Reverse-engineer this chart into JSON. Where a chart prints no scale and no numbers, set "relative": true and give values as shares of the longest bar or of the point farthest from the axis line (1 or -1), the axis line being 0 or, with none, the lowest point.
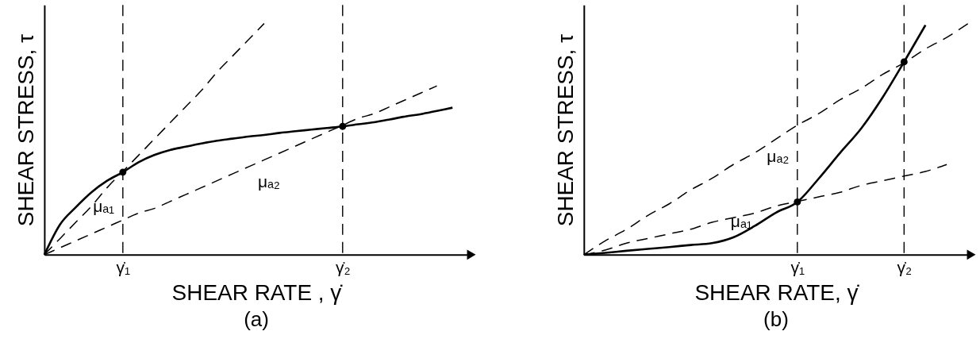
{
  "chart_data": [
    {
      "type": "line",
      "title": "(a)",
      "xlabel": "SHEAR RATE , γ̇",
      "ylabel": "SHEAR STRESS, τ",
      "relative": true,
      "categories": [
        null,
        null,
        null,
        null,
        null,
        "γ̇₁",
        null,
        null,
        null,
        null,
        null,
        null,
        null,
        null,
        null,
        null,
        null,
        null,
        null,
        "γ̇₂",
        null,
        null,
        null,
        null,
        null,
        null,
        null,
        null
      ],
      "series": [
        {
          "line_style": "solid",
          "color": "#000000",
          "values": [
            0,
            0.131,
            0.205,
            0.27,
            0.32,
            0.357,
            0.4,
            0.431,
            0.453,
            0.467,
            0.481,
            0.493,
            0.502,
            0.511,
            0.518,
            0.527,
            0.534,
            0.541,
            0.548,
            0.555,
            0.564,
            0.573,
            0.585,
            0.598,
            0.608,
            0.622,
            0.636,
            null
          ]
        },
        {
          "line_style": "dashed",
          "color": "#000000",
          "values": [
            0,
            0.07,
            0.14,
            0.21,
            0.29,
            0.36,
            0.43,
            0.5,
            0.57,
            0.64,
            0.71,
            0.79,
            0.86,
            0.93,
            1,
            null,
            null,
            null,
            null,
            null,
            null,
            null,
            null,
            null,
            null,
            null,
            null,
            null
          ]
        },
        {
          "line_style": "dashed",
          "color": "#000000",
          "values": [
            0,
            0.03,
            0.06,
            0.09,
            0.12,
            0.15,
            0.18,
            0.2,
            0.23,
            0.26,
            0.29,
            0.32,
            0.35,
            0.38,
            0.41,
            0.44,
            0.47,
            0.5,
            0.53,
            0.56,
            0.59,
            0.61,
            0.64,
            0.67,
            0.7,
            0.73,
            null,
            null
          ]
        },
        {
          "type": "scatter",
          "marker": "circle",
          "color": "#000000",
          "values": [
            null,
            null,
            null,
            null,
            null,
            0.357,
            null,
            null,
            null,
            null,
            null,
            null,
            null,
            null,
            null,
            null,
            null,
            null,
            null,
            0.555,
            null,
            null,
            null,
            null,
            null,
            null,
            null,
            null
          ]
        }
      ],
      "ref_lines": [
        {
          "axis": "x",
          "value": "γ̇₁",
          "line_style": "dashed",
          "color": "#000000"
        },
        {
          "axis": "x",
          "value": "γ̇₂",
          "line_style": "dashed",
          "color": "#000000"
        }
      ],
      "annotations": [
        "μₐ₁",
        "μₐ₂"
      ]
    },
    {
      "type": "line",
      "title": "(b)",
      "xlabel": "SHEAR RATE, γ̇",
      "ylabel": "SHEAR STRESS, τ",
      "relative": true,
      "categories": [
        null,
        null,
        null,
        null,
        null,
        null,
        null,
        null,
        null,
        null,
        "γ̇₁",
        null,
        null,
        null,
        null,
        "γ̇₂",
        null,
        null,
        null
      ],
      "series": [
        {
          "line_style": "solid",
          "color": "#000000",
          "values": [
            0,
            0.008,
            0.017,
            0.025,
            0.033,
            0.042,
            0.05,
            0.075,
            0.124,
            0.182,
            0.228,
            0.329,
            0.44,
            0.547,
            0.681,
            0.834,
            0.993,
            null,
            null
          ]
        },
        {
          "line_style": "dashed",
          "color": "#000000",
          "values": [
            0,
            0.06,
            0.11,
            0.17,
            0.22,
            0.28,
            0.33,
            0.39,
            0.44,
            0.5,
            0.56,
            0.61,
            0.67,
            0.72,
            0.78,
            0.83,
            0.89,
            0.94,
            1
          ]
        },
        {
          "line_style": "dashed",
          "color": "#000000",
          "values": [
            0,
            0.02,
            0.05,
            0.07,
            0.09,
            0.11,
            0.14,
            0.16,
            0.18,
            0.21,
            0.23,
            0.25,
            0.27,
            0.3,
            0.32,
            0.34,
            0.36,
            0.39,
            null
          ]
        },
        {
          "type": "scatter",
          "marker": "circle",
          "color": "#000000",
          "values": [
            null,
            null,
            null,
            null,
            null,
            null,
            null,
            null,
            null,
            null,
            0.228,
            null,
            null,
            null,
            null,
            0.834,
            null,
            null,
            null
          ]
        }
      ],
      "ref_lines": [
        {
          "axis": "x",
          "value": "γ̇₁",
          "line_style": "dashed",
          "color": "#000000"
        },
        {
          "axis": "x",
          "value": "γ̇₂",
          "line_style": "dashed",
          "color": "#000000"
        }
      ],
      "annotations": [
        "μₐ₁",
        "μₐ₂"
      ]
    }
  ]
}
